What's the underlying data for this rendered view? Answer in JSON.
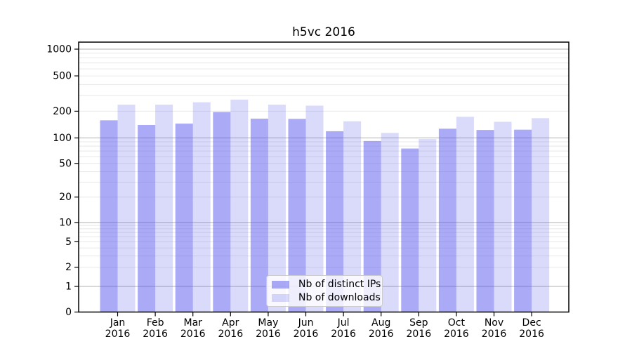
{
  "title": "h5vc 2016",
  "chart_data": {
    "type": "bar",
    "title": "h5vc 2016",
    "categories": [
      "Jan",
      "Feb",
      "Mar",
      "Apr",
      "May",
      "Jun",
      "Jul",
      "Aug",
      "Sep",
      "Oct",
      "Nov",
      "Dec"
    ],
    "year_label": "2016",
    "series": [
      {
        "name": "Nb of distinct IPs",
        "color": "rgba(85,85,238,0.5)",
        "values": [
          158,
          140,
          145,
          196,
          165,
          164,
          119,
          92,
          75,
          127,
          123,
          124
        ]
      },
      {
        "name": "Nb of downloads",
        "color": "rgba(85,85,238,0.22)",
        "values": [
          237,
          237,
          252,
          270,
          237,
          231,
          154,
          114,
          97,
          173,
          152,
          167
        ]
      }
    ],
    "yscale": "symlog",
    "ytick_labels": [
      0,
      1,
      2,
      5,
      10,
      20,
      50,
      100,
      200,
      500,
      1000
    ],
    "ylim": [
      0,
      1200
    ],
    "grid": "horizontal, major and minor",
    "legend_position": "bottom-center inside plot",
    "colors": {
      "major_grid": "#b0b0b0",
      "minor_grid": "#e8e8e8",
      "axis": "#000000",
      "background": "#ffffff"
    }
  }
}
